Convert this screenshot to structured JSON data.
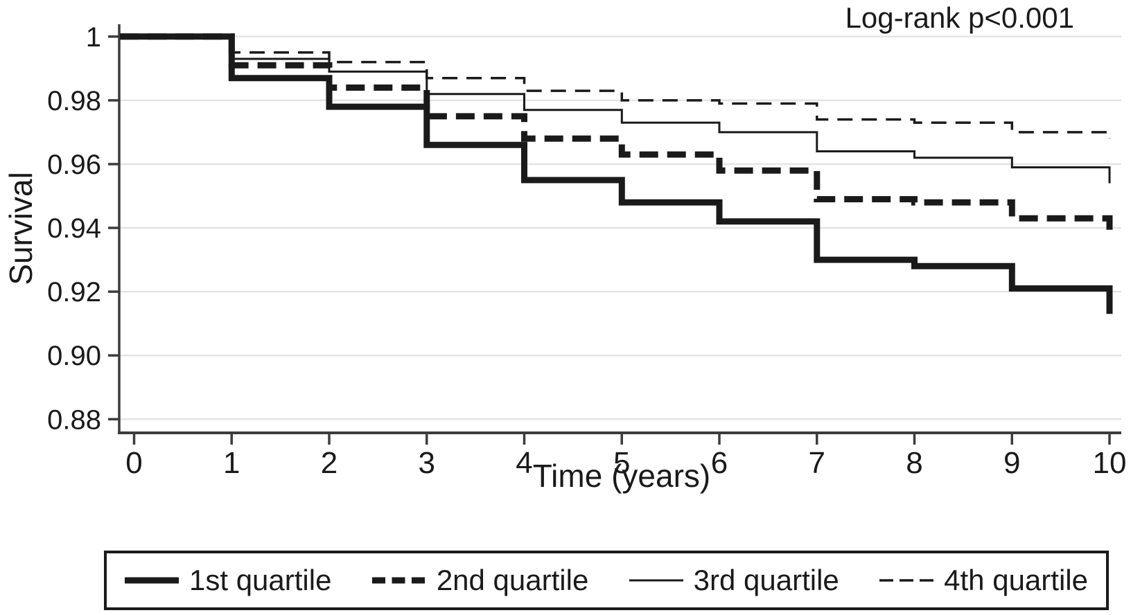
{
  "chart_data": {
    "type": "line",
    "subtype": "kaplan-meier-step",
    "title": "",
    "annotation": "Log-rank p<0.001",
    "xlabel": "Time (years)",
    "ylabel": "Survival",
    "xlim": [
      0,
      10
    ],
    "ylim": [
      0.875,
      1.003
    ],
    "grid": "horizontal",
    "legend_position": "bottom",
    "x_ticks": [
      0,
      1,
      2,
      3,
      4,
      5,
      6,
      7,
      8,
      9,
      10
    ],
    "y_ticks": [
      {
        "value": 1.0,
        "label": "1"
      },
      {
        "value": 0.98,
        "label": "0.98"
      },
      {
        "value": 0.96,
        "label": "0.96"
      },
      {
        "value": 0.94,
        "label": "0.94"
      },
      {
        "value": 0.92,
        "label": "0.92"
      },
      {
        "value": 0.9,
        "label": "0.90"
      },
      {
        "value": 0.88,
        "label": "0.88"
      }
    ],
    "times": [
      0,
      1,
      2,
      3,
      4,
      5,
      6,
      7,
      8,
      9,
      10
    ],
    "series": [
      {
        "name": "1st quartile",
        "style": "thick-solid",
        "values": [
          1.0,
          0.987,
          0.978,
          0.966,
          0.955,
          0.948,
          0.942,
          0.93,
          0.928,
          0.921,
          0.913
        ]
      },
      {
        "name": "2nd quartile",
        "style": "thick-dashed",
        "values": [
          1.0,
          0.991,
          0.984,
          0.975,
          0.968,
          0.963,
          0.958,
          0.949,
          0.948,
          0.943,
          0.937
        ]
      },
      {
        "name": "3rd quartile",
        "style": "thin-solid",
        "values": [
          1.0,
          0.993,
          0.989,
          0.982,
          0.977,
          0.973,
          0.97,
          0.964,
          0.962,
          0.959,
          0.954
        ]
      },
      {
        "name": "4th quartile",
        "style": "thin-dashed",
        "values": [
          1.0,
          0.995,
          0.992,
          0.987,
          0.983,
          0.98,
          0.979,
          0.974,
          0.973,
          0.97,
          0.968
        ]
      }
    ],
    "colors": {
      "line": "#1a1a1a",
      "grid": "#e4e4e4",
      "axis": "#3c3c3c",
      "text": "#1a1a1a",
      "background": "#ffffff"
    }
  }
}
